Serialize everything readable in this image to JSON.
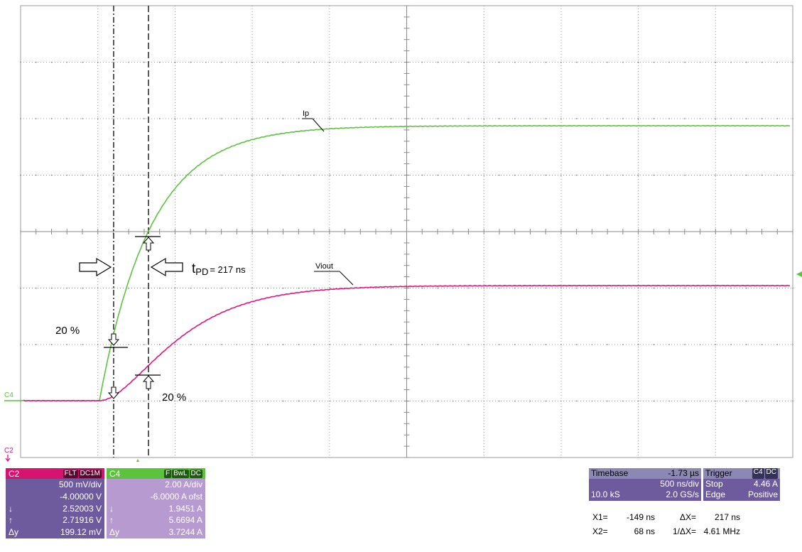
{
  "colors": {
    "ch2": "#e8127f",
    "ch4": "#5cc43c",
    "ch2_header": "#d8126f",
    "ch4_header": "#5cc43c",
    "ch2_panel": "#6d5b9e",
    "ch4_panel": "#b79ad0",
    "timebase_panel": "#6d5b9e",
    "timebase_header": "#8c87b3"
  },
  "screen": {
    "ch4_marker": "C4",
    "ch2_marker": "C2",
    "ch4_trace_label": "Ip",
    "ch2_trace_label": "Viout",
    "delay_label_t": "t",
    "delay_label_sub": "PD",
    "delay_value": "= 217 ns",
    "pct_upper": "20 %",
    "pct_lower": "20 %"
  },
  "ch2": {
    "name": "C2",
    "badges": [
      "FLT",
      "DC1M"
    ],
    "scale": "500 mV/div",
    "offset": "-4.00000 V",
    "down_sym": "↓",
    "up_sym": "↑",
    "dy_sym": "Δy",
    "cursor_down": "2.52003 V",
    "cursor_up": "2.71916 V",
    "delta_y": "199.12 mV"
  },
  "ch4": {
    "name": "C4",
    "badges": [
      "F",
      "BwL",
      "DC"
    ],
    "scale": "2.00 A/div",
    "offset": "-6.0000 A ofst",
    "down_sym": "↓",
    "up_sym": "↑",
    "dy_sym": "Δy",
    "cursor_down": "1.9451 A",
    "cursor_up": "5.6694 A",
    "delta_y": "3.7244 A"
  },
  "timebase": {
    "title": "Timebase",
    "delay": "-1.73 µs",
    "scale": "500 ns/div",
    "samples": "10.0 kS",
    "rate": "2.0 GS/s"
  },
  "trigger": {
    "title": "Trigger",
    "badges": [
      "C4",
      "DC"
    ],
    "mode": "Stop",
    "level": "4.46 A",
    "type": "Edge",
    "slope": "Positive"
  },
  "cursors": {
    "x1_label": "X1=",
    "x1": "-149 ns",
    "dx_label": "ΔX=",
    "dx": "217 ns",
    "x2_label": "X2=",
    "x2": "68 ns",
    "inv_dx_label": "1/ΔX=",
    "inv_dx": "4.61 MHz"
  }
}
